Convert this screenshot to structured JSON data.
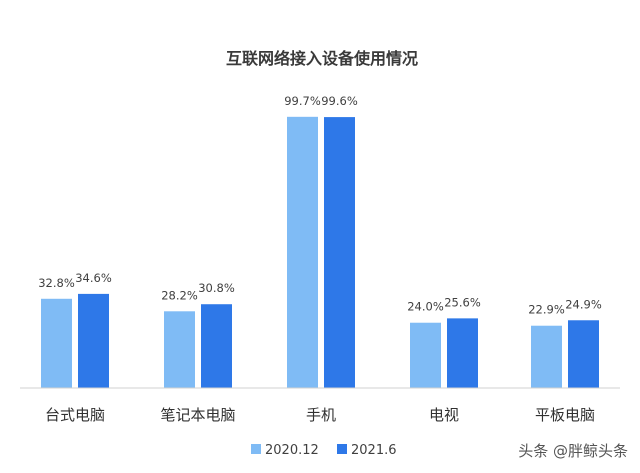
{
  "chart_data": {
    "type": "bar",
    "title": "互联网络接入设备使用情况",
    "categories": [
      "台式电脑",
      "笔记本电脑",
      "手机",
      "电视",
      "平板电脑"
    ],
    "series": [
      {
        "name": "2020.12",
        "values": [
          32.8,
          28.2,
          99.7,
          24.0,
          22.9
        ],
        "labels": [
          "32.8%",
          "28.2%",
          "99.7%",
          "24.0%",
          "22.9%"
        ],
        "color": "#7FBBF5"
      },
      {
        "name": "2021.6",
        "values": [
          34.6,
          30.8,
          99.6,
          25.6,
          24.9
        ],
        "labels": [
          "34.6%",
          "30.8%",
          "99.6%",
          "25.6%",
          "24.9%"
        ],
        "color": "#2E78E8"
      }
    ],
    "ylim": [
      0,
      100
    ],
    "grid": false,
    "legend": "bottom"
  },
  "watermark": "头条 @胖鲸头条"
}
